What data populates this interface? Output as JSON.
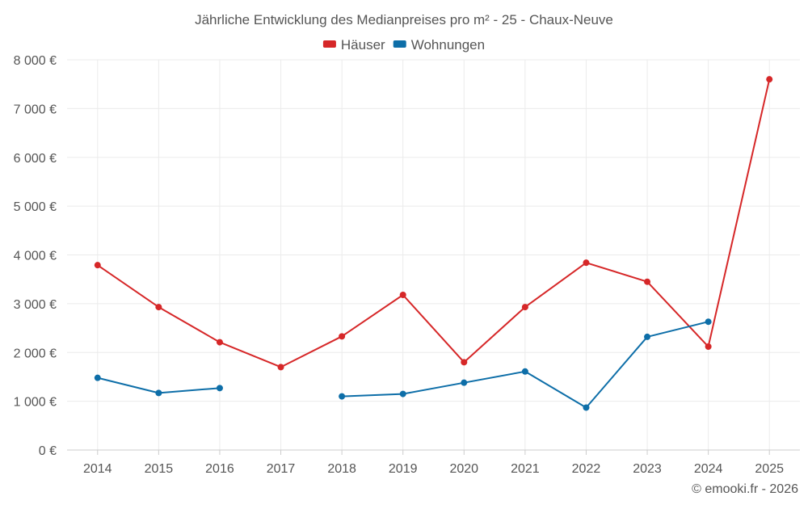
{
  "chart_data": {
    "type": "line",
    "title": "Jährliche Entwicklung des Medianpreises pro m² - 25 - Chaux-Neuve",
    "categories": [
      "2014",
      "2015",
      "2016",
      "2017",
      "2018",
      "2019",
      "2020",
      "2021",
      "2022",
      "2023",
      "2024",
      "2025"
    ],
    "series": [
      {
        "name": "Häuser",
        "color": "#d62728",
        "values": [
          3790,
          2930,
          2210,
          1700,
          2330,
          3180,
          1800,
          2930,
          3840,
          3450,
          2120,
          7600
        ]
      },
      {
        "name": "Wohnungen",
        "color": "#0d6ea8",
        "values": [
          1480,
          1170,
          1270,
          null,
          1100,
          1150,
          1380,
          1610,
          870,
          2320,
          2630,
          null
        ]
      }
    ],
    "ylim": [
      0,
      8000
    ],
    "yticks": [
      0,
      1000,
      2000,
      3000,
      4000,
      5000,
      6000,
      7000,
      8000
    ],
    "ytick_labels": [
      "0 €",
      "1 000 €",
      "2 000 €",
      "3 000 €",
      "4 000 €",
      "5 000 €",
      "6 000 €",
      "7 000 €",
      "8 000 €"
    ],
    "xlabel": "",
    "ylabel": "",
    "grid": true,
    "legend_position": "top-center"
  },
  "credit": "© emooki.fr - 2026"
}
